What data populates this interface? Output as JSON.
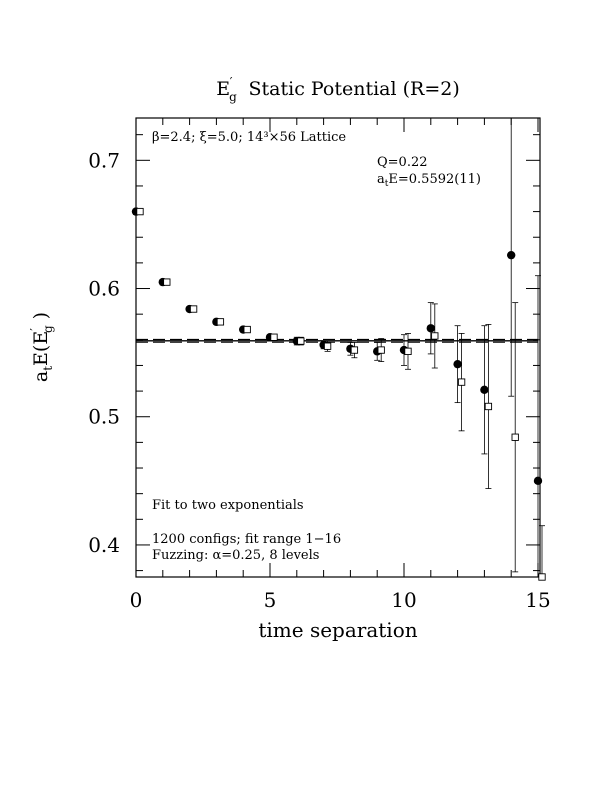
{
  "chart_data": {
    "type": "scatter",
    "title_main": "E",
    "title_sub": "g",
    "title_prime": "′",
    "title_rest": "Static Potential (R=2)",
    "xlabel": "time separation",
    "ylabel_parts": {
      "a": "a",
      "t": "t",
      "E": "E(E",
      "prime": "′",
      "g": "g",
      "close": " )"
    },
    "xlim": [
      0,
      15
    ],
    "ylim": [
      0.375,
      0.733
    ],
    "x_ticks": [
      0,
      5,
      10,
      15
    ],
    "y_ticks": [
      0.4,
      0.5,
      0.6,
      0.7
    ],
    "x_tick_labels": [
      "0",
      "5",
      "10",
      "15"
    ],
    "y_tick_labels": [
      "0.4",
      "0.5",
      "0.6",
      "0.7"
    ],
    "x_minor_step": 1,
    "y_minor_step": 0.02,
    "annotations": {
      "top_left": "β=2.4; ξ=5.0; 14³×56 Lattice",
      "q": "Q=0.22",
      "fit_a": "a",
      "fit_t": "t",
      "fit_rest": "E=0.5592(11)",
      "fit_type": "Fit to two exponentials",
      "configs": "1200 configs; fit range 1−16",
      "fuzzing": "Fuzzing: α=0.25, 8 levels"
    },
    "fit_value": 0.5592,
    "fit_error": 0.0011,
    "fit_range": [
      0,
      15
    ],
    "series": [
      {
        "marker": "filled-circle",
        "points": [
          {
            "x": 0,
            "y": 0.66,
            "err": 0.002
          },
          {
            "x": 1,
            "y": 0.605,
            "err": 0.002
          },
          {
            "x": 2,
            "y": 0.584,
            "err": 0.002
          },
          {
            "x": 3,
            "y": 0.574,
            "err": 0.002
          },
          {
            "x": 4,
            "y": 0.568,
            "err": 0.002
          },
          {
            "x": 5,
            "y": 0.562,
            "err": 0.002
          },
          {
            "x": 6,
            "y": 0.559,
            "err": 0.003
          },
          {
            "x": 7,
            "y": 0.556,
            "err": 0.003
          },
          {
            "x": 8,
            "y": 0.553,
            "err": 0.005
          },
          {
            "x": 9,
            "y": 0.551,
            "err": 0.007
          },
          {
            "x": 10,
            "y": 0.552,
            "err": 0.012
          },
          {
            "x": 11,
            "y": 0.569,
            "err": 0.02
          },
          {
            "x": 12,
            "y": 0.541,
            "err": 0.03
          },
          {
            "x": 13,
            "y": 0.521,
            "err": 0.05
          },
          {
            "x": 14,
            "y": 0.626,
            "err": 0.11
          },
          {
            "x": 15,
            "y": 0.45,
            "err": 0.16
          }
        ]
      },
      {
        "marker": "open-square",
        "points": [
          {
            "x": 0,
            "y": 0.66,
            "err": 0.002
          },
          {
            "x": 1,
            "y": 0.605,
            "err": 0.002
          },
          {
            "x": 2,
            "y": 0.584,
            "err": 0.002
          },
          {
            "x": 3,
            "y": 0.574,
            "err": 0.002
          },
          {
            "x": 4,
            "y": 0.568,
            "err": 0.002
          },
          {
            "x": 5,
            "y": 0.562,
            "err": 0.002
          },
          {
            "x": 6,
            "y": 0.559,
            "err": 0.003
          },
          {
            "x": 7,
            "y": 0.555,
            "err": 0.004
          },
          {
            "x": 8,
            "y": 0.552,
            "err": 0.006
          },
          {
            "x": 9,
            "y": 0.552,
            "err": 0.009
          },
          {
            "x": 10,
            "y": 0.551,
            "err": 0.014
          },
          {
            "x": 11,
            "y": 0.563,
            "err": 0.025
          },
          {
            "x": 12,
            "y": 0.527,
            "err": 0.038
          },
          {
            "x": 13,
            "y": 0.508,
            "err": 0.064
          },
          {
            "x": 14,
            "y": 0.484,
            "err": 0.105
          },
          {
            "x": 15,
            "y": 0.375,
            "err": 0.04
          }
        ]
      }
    ]
  }
}
